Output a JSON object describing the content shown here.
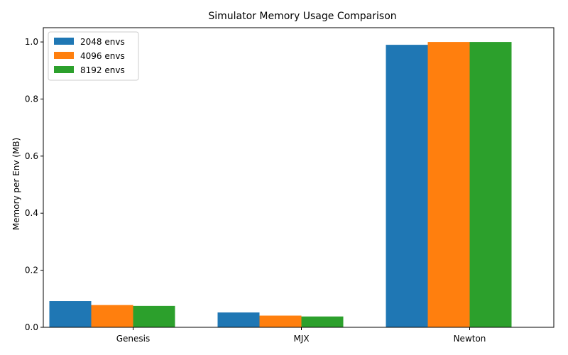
{
  "chart_data": {
    "type": "bar",
    "title": "Simulator Memory Usage Comparison",
    "xlabel": "",
    "ylabel": "Memory per Env (MB)",
    "categories": [
      "Genesis",
      "MJX",
      "Newton"
    ],
    "series": [
      {
        "name": "2048 envs",
        "color": "#1f77b4",
        "values": [
          0.092,
          0.052,
          0.99
        ]
      },
      {
        "name": "4096 envs",
        "color": "#ff7f0e",
        "values": [
          0.078,
          0.041,
          1.0
        ]
      },
      {
        "name": "8192 envs",
        "color": "#2ca02c",
        "values": [
          0.075,
          0.038,
          1.0
        ]
      }
    ],
    "ylim": [
      0,
      1.05
    ],
    "yticks": [
      "0.0",
      "0.2",
      "0.4",
      "0.6",
      "0.8",
      "1.0"
    ],
    "grid": false,
    "legend_position": "top-left"
  }
}
